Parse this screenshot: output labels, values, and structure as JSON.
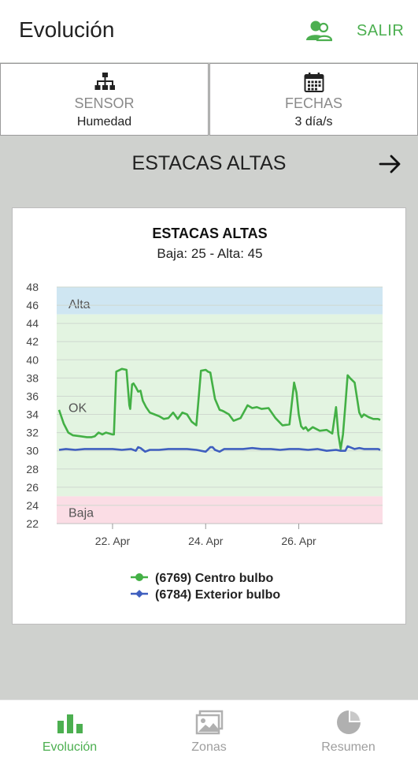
{
  "header": {
    "title": "Evolución",
    "logout_label": "SALIR"
  },
  "selectors": {
    "sensor": {
      "label": "SENSOR",
      "value": "Humedad"
    },
    "dates": {
      "label": "FECHAS",
      "value": "3 día/s"
    }
  },
  "zone": {
    "title": "ESTACAS ALTAS"
  },
  "colors": {
    "accent": "#4caf50",
    "series_green": "#43b045",
    "series_blue": "#3f5fbf",
    "band_alta": "#cfe6f2",
    "band_ok": "#e3f4e1",
    "band_baja": "#fbdde5"
  },
  "chart_data": {
    "type": "line",
    "title": "ESTACAS ALTAS",
    "subtitle": "Baja: 25 - Alta: 45",
    "ylim": [
      22,
      48
    ],
    "yticks": [
      "48",
      "46",
      "44",
      "42",
      "40",
      "38",
      "36",
      "34",
      "32",
      "30",
      "28",
      "26",
      "24",
      "22"
    ],
    "xlim": [
      20.8,
      27.8
    ],
    "xticks": [
      {
        "x": 22,
        "label": "22. Apr"
      },
      {
        "x": 24,
        "label": "24. Apr"
      },
      {
        "x": 26,
        "label": "26. Apr"
      }
    ],
    "bands": [
      {
        "label": "Alta",
        "from": 45,
        "to": 48
      },
      {
        "label": "OK",
        "from": 25,
        "to": 45
      },
      {
        "label": "Baja",
        "from": 22,
        "to": 25
      }
    ],
    "grid": true,
    "legend_position": "bottom",
    "series": [
      {
        "name": "(6769) Centro bulbo",
        "x": [
          20.85,
          20.95,
          21.05,
          21.15,
          21.3,
          21.45,
          21.55,
          21.62,
          21.7,
          21.78,
          21.86,
          21.93,
          21.99,
          22.0,
          22.03,
          22.08,
          22.2,
          22.3,
          22.36,
          22.38,
          22.42,
          22.45,
          22.5,
          22.55,
          22.6,
          22.65,
          22.72,
          22.8,
          22.9,
          23.0,
          23.1,
          23.2,
          23.3,
          23.4,
          23.5,
          23.6,
          23.7,
          23.8,
          23.9,
          24.0,
          24.05,
          24.1,
          24.2,
          24.3,
          24.36,
          24.4,
          24.5,
          24.6,
          24.75,
          24.9,
          25.0,
          25.1,
          25.2,
          25.35,
          25.5,
          25.65,
          25.8,
          25.9,
          25.95,
          26.0,
          26.05,
          26.1,
          26.15,
          26.2,
          26.3,
          26.45,
          26.6,
          26.72,
          26.8,
          26.85,
          26.9,
          26.95,
          27.0,
          27.05,
          27.1,
          27.2,
          27.3,
          27.35,
          27.4,
          27.5,
          27.6,
          27.7,
          27.75
        ],
        "values": [
          34.5,
          33.0,
          32.0,
          31.7,
          31.6,
          31.5,
          31.5,
          31.6,
          32.0,
          31.8,
          32.0,
          31.9,
          31.8,
          31.8,
          31.8,
          38.7,
          39.0,
          38.9,
          35.0,
          34.6,
          37.3,
          37.4,
          37.0,
          36.5,
          36.6,
          35.5,
          34.8,
          34.2,
          34.0,
          33.8,
          33.5,
          33.6,
          34.2,
          33.5,
          34.2,
          34.0,
          33.2,
          32.8,
          38.8,
          38.9,
          38.7,
          38.6,
          35.7,
          34.5,
          34.4,
          34.3,
          34.0,
          33.3,
          33.6,
          35.0,
          34.7,
          34.8,
          34.6,
          34.7,
          33.6,
          32.8,
          32.9,
          37.5,
          36.4,
          34.0,
          32.7,
          32.4,
          32.6,
          32.2,
          32.6,
          32.2,
          32.3,
          31.9,
          34.8,
          31.8,
          30.2,
          31.8,
          35.0,
          38.3,
          38.0,
          37.5,
          34.2,
          33.7,
          34.0,
          33.7,
          33.5,
          33.5,
          33.4
        ]
      },
      {
        "name": "(6784) Exterior bulbo",
        "x": [
          20.85,
          21.0,
          21.2,
          21.4,
          21.6,
          21.8,
          22.0,
          22.2,
          22.4,
          22.5,
          22.55,
          22.6,
          22.7,
          22.8,
          23.0,
          23.2,
          23.4,
          23.6,
          23.8,
          24.0,
          24.1,
          24.15,
          24.2,
          24.3,
          24.4,
          24.6,
          24.8,
          25.0,
          25.2,
          25.4,
          25.6,
          25.8,
          26.0,
          26.2,
          26.4,
          26.6,
          26.8,
          26.9,
          27.0,
          27.05,
          27.1,
          27.2,
          27.3,
          27.4,
          27.5,
          27.6,
          27.7,
          27.75
        ],
        "values": [
          30.1,
          30.2,
          30.1,
          30.2,
          30.2,
          30.2,
          30.2,
          30.1,
          30.2,
          30.0,
          30.4,
          30.3,
          29.9,
          30.1,
          30.1,
          30.2,
          30.2,
          30.2,
          30.1,
          29.9,
          30.4,
          30.4,
          30.1,
          29.9,
          30.2,
          30.2,
          30.2,
          30.3,
          30.2,
          30.2,
          30.1,
          30.2,
          30.2,
          30.1,
          30.2,
          30.0,
          30.1,
          30.0,
          30.0,
          30.5,
          30.4,
          30.2,
          30.3,
          30.2,
          30.2,
          30.2,
          30.2,
          30.1
        ]
      }
    ]
  },
  "nav": {
    "items": [
      {
        "label": "Evolución",
        "icon": "bar-chart-icon",
        "active": true
      },
      {
        "label": "Zonas",
        "icon": "image-icon",
        "active": false
      },
      {
        "label": "Resumen",
        "icon": "pie-chart-icon",
        "active": false
      }
    ]
  }
}
